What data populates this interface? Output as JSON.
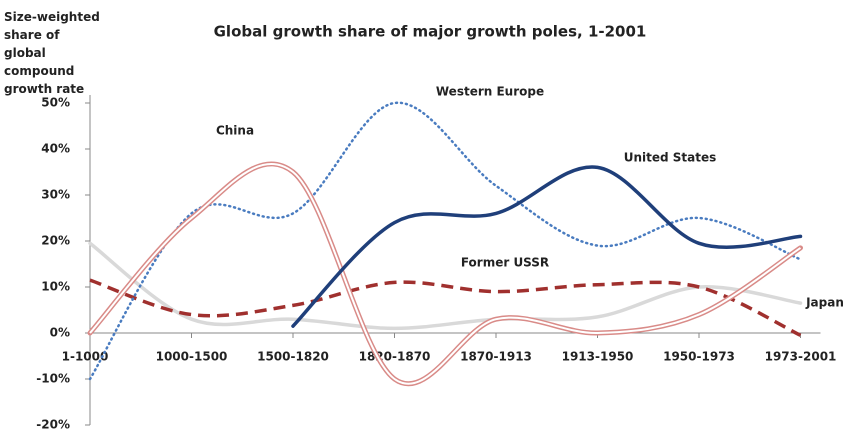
{
  "chart_data": {
    "type": "line",
    "title": "Global growth share of major growth poles, 1-2001",
    "y_label": "Size-weighted share of global compound growth rate",
    "categories": [
      "1-1000",
      "1000-1500",
      "1500-1820",
      "1820-1870",
      "1870-1913",
      "1913-1950",
      "1950-1973",
      "1973-2001"
    ],
    "ylim": [
      -20,
      50
    ],
    "yticks": [
      {
        "value": -20,
        "label": "-20%"
      },
      {
        "value": -10,
        "label": "-10%"
      },
      {
        "value": 0,
        "label": "0%"
      },
      {
        "value": 10,
        "label": "10%"
      },
      {
        "value": 20,
        "label": "20%"
      },
      {
        "value": 30,
        "label": "30%"
      },
      {
        "value": 40,
        "label": "40%"
      },
      {
        "value": 50,
        "label": "50%"
      }
    ],
    "series": [
      {
        "name": "Japan",
        "color": "#d9d9d9",
        "style": "solid",
        "values": [
          19.5,
          3,
          3,
          1,
          3,
          3.5,
          10,
          6.5
        ]
      },
      {
        "name": "Former USSR",
        "color": "#a0302e",
        "style": "dashed",
        "values": [
          11.5,
          4,
          6,
          11,
          9,
          10.5,
          10,
          -0.5
        ]
      },
      {
        "name": "Western Europe",
        "color": "#4a7cc0",
        "style": "dotted",
        "values": [
          -10,
          26,
          26,
          50,
          32,
          19,
          25,
          16
        ]
      },
      {
        "name": "China",
        "color": "#d98b88",
        "style": "double",
        "values": [
          0,
          25,
          35,
          -10,
          3,
          0,
          4,
          18.5
        ]
      },
      {
        "name": "United States",
        "color": "#1f3f7a",
        "style": "solid",
        "values": [
          null,
          null,
          1.5,
          24,
          26,
          36,
          19.5,
          21
        ]
      }
    ]
  }
}
